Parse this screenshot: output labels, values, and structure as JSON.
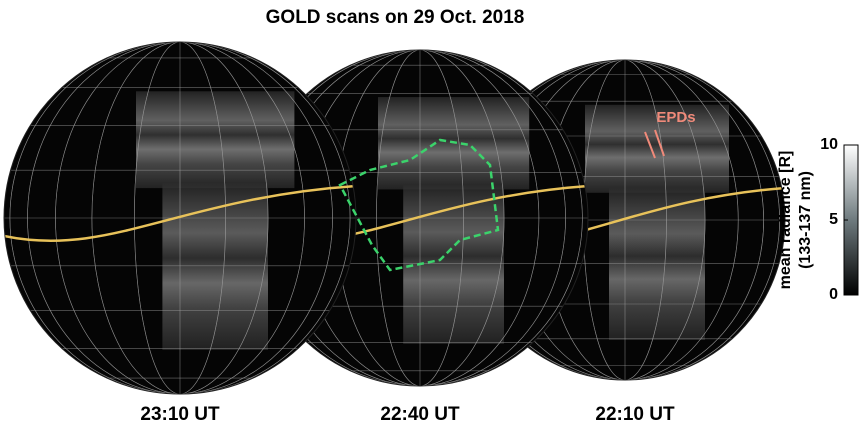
{
  "title": "GOLD scans on 29 Oct. 2018",
  "panels": [
    {
      "label": "23:10 UT"
    },
    {
      "label": "22:40 UT"
    },
    {
      "label": "22:10 UT",
      "annotation": "EPDs"
    }
  ],
  "colorbar": {
    "label": [
      "mean radiance [R]",
      "(133-137 nm)"
    ],
    "lim": [
      0,
      10
    ],
    "ticks": [
      0,
      5,
      10
    ]
  }
}
